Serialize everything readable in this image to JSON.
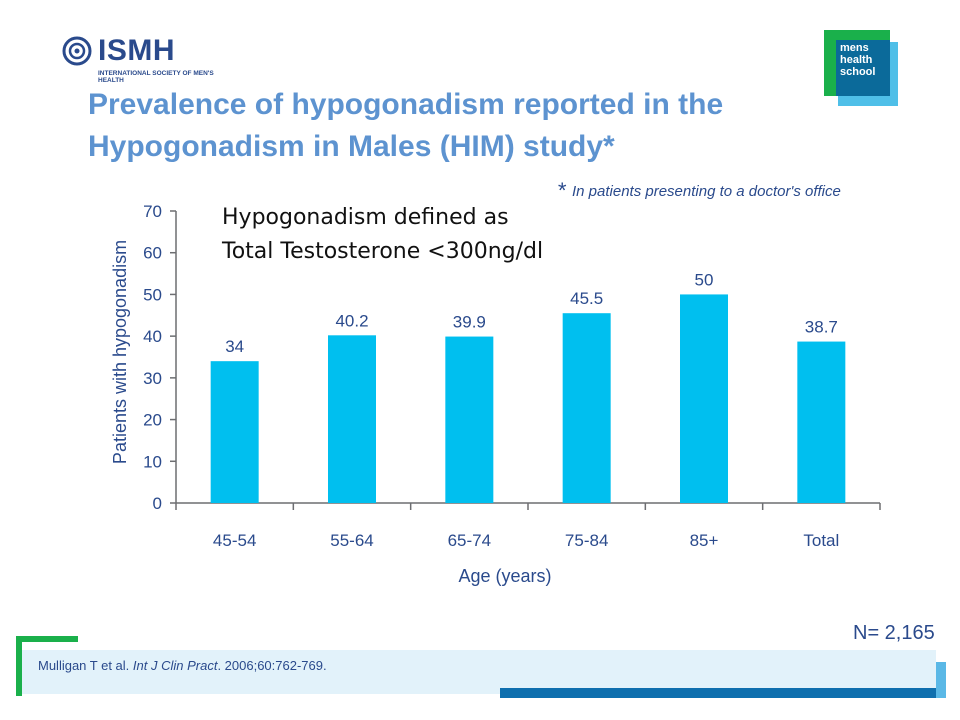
{
  "logo": {
    "name": "ISMH",
    "subtitle": "INTERNATIONAL SOCIETY OF MEN'S HEALTH"
  },
  "badge": {
    "line1": "mens",
    "line2": "health",
    "line3": "school"
  },
  "title": "Prevalence of hypogonadism reported in the Hypogonadism in Males (HIM) study*",
  "footnote": {
    "star": "*",
    "text": "In patients presenting to a doctor's office"
  },
  "definition": {
    "line1": "Hypogonadism defined as",
    "line2": "Total Testosterone <300ng/dl"
  },
  "n_label": "N= 2,165",
  "citation": {
    "authors": "Mulligan T et al. ",
    "journal": "Int J Clin Pract",
    "rest": ". 2006;60:762-769."
  },
  "colors": {
    "bar": "#00bfef",
    "axis": "#6d6e71",
    "text": "#2a4a8c",
    "title": "#5d93d0"
  },
  "chart_data": {
    "type": "bar",
    "categories": [
      "45-54",
      "55-64",
      "65-74",
      "75-84",
      "85+",
      "Total"
    ],
    "values": [
      34,
      40.2,
      39.9,
      45.5,
      50,
      38.7
    ],
    "value_labels": [
      "34",
      "40.2",
      "39.9",
      "45.5",
      "50",
      "38.7"
    ],
    "xlabel": "Age (years)",
    "ylabel": "Patients with hypogonadism",
    "ylim": [
      0,
      70
    ],
    "yticks": [
      0,
      10,
      20,
      30,
      40,
      50,
      60,
      70
    ],
    "grid": false
  }
}
